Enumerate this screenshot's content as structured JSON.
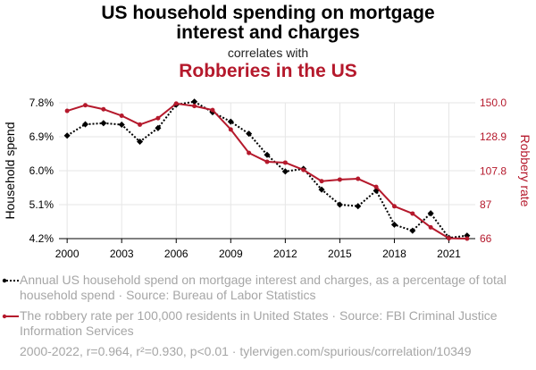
{
  "header": {
    "title_line1": "US household spending on mortgage",
    "title_line2": "interest and charges",
    "subtitle": "correlates with",
    "title2": "Robberies in the US"
  },
  "colors": {
    "series1": "#000000",
    "series2": "#b5192c",
    "grid": "#e6e6e6"
  },
  "chart_data": {
    "type": "line",
    "x": [
      2000,
      2001,
      2002,
      2003,
      2004,
      2005,
      2006,
      2007,
      2008,
      2009,
      2010,
      2011,
      2012,
      2013,
      2014,
      2015,
      2016,
      2017,
      2018,
      2019,
      2020,
      2021,
      2022
    ],
    "xlim": [
      1999.55,
      2022.45
    ],
    "xticks": [
      2000,
      2003,
      2006,
      2009,
      2012,
      2015,
      2018,
      2021
    ],
    "series": [
      {
        "name": "Household spend",
        "axis": "left",
        "style": "dotted",
        "values": [
          6.93,
          7.23,
          7.26,
          7.22,
          6.77,
          7.13,
          7.75,
          7.83,
          7.55,
          7.3,
          6.98,
          6.42,
          5.98,
          6.05,
          5.5,
          5.1,
          5.06,
          5.47,
          4.57,
          4.41,
          4.87,
          4.22,
          4.28
        ]
      },
      {
        "name": "Robbery rate",
        "axis": "right",
        "style": "solid",
        "values": [
          145.0,
          148.5,
          146.0,
          142.0,
          136.5,
          140.5,
          149.5,
          148.0,
          145.5,
          133.5,
          119.0,
          113.5,
          113.0,
          108.5,
          101.5,
          102.5,
          103.0,
          98.0,
          86.0,
          81.5,
          73.0,
          66.2,
          66.0
        ]
      }
    ],
    "y_left": {
      "label": "Household spend",
      "ticks": [
        "4.2%",
        "5.1%",
        "6.0%",
        "6.9%",
        "7.8%"
      ],
      "tick_values": [
        4.2,
        5.1,
        6.0,
        6.9,
        7.8
      ],
      "lim": [
        4.2,
        7.8
      ]
    },
    "y_right": {
      "label": "Robbery rate",
      "ticks": [
        "66",
        "87",
        "107.8",
        "128.9",
        "150.0"
      ],
      "tick_values": [
        66,
        87,
        107.8,
        128.9,
        150.0
      ],
      "lim": [
        66,
        150.0
      ]
    }
  },
  "legend": {
    "item1": "Annual US household spend on mortgage interest and charges, as a percentage of total household spend · Source: Bureau of Labor Statistics",
    "item2": "The robbery rate per 100,000 residents in United States · Source: FBI Criminal Justice Information Services"
  },
  "footer": "2000-2022, r=0.964, r²=0.930, p<0.01 · tylervigen.com/spurious/correlation/10349"
}
